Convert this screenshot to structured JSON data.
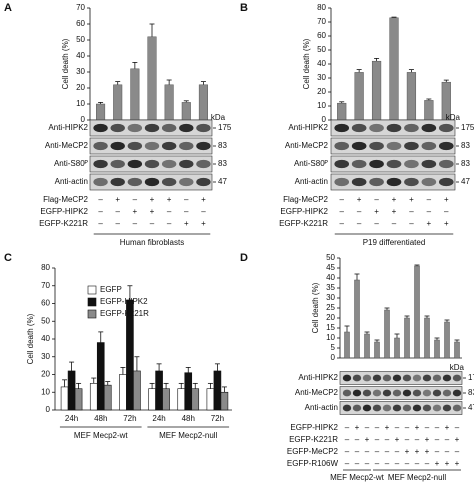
{
  "chart_data": [
    {
      "panel": "A",
      "type": "bar",
      "ylabel": "Cell death (%)",
      "color": "#8a8a8a",
      "values": [
        10,
        22,
        32,
        52,
        22,
        11,
        22
      ],
      "errors": [
        1,
        2,
        4,
        8,
        3,
        1,
        2
      ],
      "ylim": [
        0,
        70
      ],
      "yticks": [
        0,
        10,
        20,
        30,
        40,
        50,
        60,
        70
      ],
      "kda_unit": "kDa",
      "blots": [
        {
          "label": "Anti-HIPK2",
          "kda": 175
        },
        {
          "label": "Anti-MeCP2",
          "kda": 83
        },
        {
          "label": "Anti-S80ᴾ",
          "kda": 83
        },
        {
          "label": "Anti-actin",
          "kda": 47
        }
      ],
      "conditions": [
        {
          "label": "Flag-MeCP2",
          "signs": [
            "–",
            "+",
            "–",
            "+",
            "+",
            "–",
            "+"
          ]
        },
        {
          "label": "EGFP-HIPK2",
          "signs": [
            "–",
            "–",
            "+",
            "+",
            "–",
            "–",
            "–"
          ]
        },
        {
          "label": "EGFP-K221R",
          "signs": [
            "–",
            "–",
            "–",
            "–",
            "–",
            "+",
            "+"
          ]
        }
      ],
      "footer": [
        "Human fibroblasts"
      ]
    },
    {
      "panel": "B",
      "type": "bar",
      "ylabel": "Cell death (%)",
      "color": "#8a8a8a",
      "values": [
        12,
        34,
        42,
        73,
        34,
        14,
        27
      ],
      "errors": [
        1,
        2,
        2,
        0.5,
        2,
        1,
        1.5
      ],
      "ylim": [
        0,
        80
      ],
      "yticks": [
        0,
        10,
        20,
        30,
        40,
        50,
        60,
        70,
        80
      ],
      "kda_unit": "kDa",
      "blots": [
        {
          "label": "Anti-HIPK2",
          "kda": 175
        },
        {
          "label": "Anti-MeCP2",
          "kda": 83
        },
        {
          "label": "Anti-S80ᴾ",
          "kda": 83
        },
        {
          "label": "Anti-actin",
          "kda": 47
        }
      ],
      "conditions": [
        {
          "label": "Flag-MeCP2",
          "signs": [
            "–",
            "+",
            "–",
            "+",
            "+",
            "–",
            "+"
          ]
        },
        {
          "label": "EGFP-HIPK2",
          "signs": [
            "–",
            "–",
            "+",
            "+",
            "–",
            "–",
            "–"
          ]
        },
        {
          "label": "EGFP-K221R",
          "signs": [
            "–",
            "–",
            "–",
            "–",
            "–",
            "+",
            "+"
          ]
        }
      ],
      "footer": [
        "P19 differentiated"
      ]
    },
    {
      "panel": "C",
      "type": "bar",
      "ylabel": "Cell death (%)",
      "categories": [
        "24h",
        "48h",
        "72h",
        "24h",
        "48h",
        "72h"
      ],
      "series": [
        {
          "name": "EGFP",
          "color": "#ffffff",
          "values": [
            13,
            15,
            20,
            12,
            12,
            12
          ],
          "errors": [
            4,
            3,
            4,
            3,
            3,
            3
          ]
        },
        {
          "name": "EGFP-HIPK2",
          "color": "#111111",
          "values": [
            22,
            38,
            62,
            22,
            21,
            22
          ],
          "errors": [
            5,
            6,
            8,
            4,
            3,
            4
          ]
        },
        {
          "name": "EGFP-K221R",
          "color": "#8a8a8a",
          "values": [
            12,
            14,
            22,
            12,
            12,
            10
          ],
          "errors": [
            3,
            2,
            8,
            3,
            3,
            3
          ]
        }
      ],
      "ylim": [
        0,
        80
      ],
      "yticks": [
        0,
        10,
        20,
        30,
        40,
        50,
        60,
        70,
        80
      ],
      "footer": [
        "MEF Mecp2-wt",
        "MEF Mecp2-null"
      ]
    },
    {
      "panel": "D",
      "type": "bar",
      "ylabel": "Cell death (%)",
      "color": "#8a8a8a",
      "values": [
        13,
        39,
        12,
        8,
        24,
        10,
        20,
        46,
        20,
        9,
        18,
        8
      ],
      "errors": [
        3,
        3,
        1,
        1,
        1,
        2,
        1,
        0.5,
        1,
        1,
        1,
        1
      ],
      "ylim": [
        0,
        50
      ],
      "yticks": [
        0,
        5,
        10,
        15,
        20,
        25,
        30,
        35,
        40,
        45,
        50
      ],
      "kda_unit": "kDa",
      "blots": [
        {
          "label": "Anti-HIPK2",
          "kda": 175
        },
        {
          "label": "Anti-MeCP2",
          "kda": 83
        },
        {
          "label": "Anti-actin",
          "kda": 47
        }
      ],
      "conditions": [
        {
          "label": "EGFP-HIPK2",
          "signs": [
            "–",
            "+",
            "–",
            "–",
            "+",
            "–",
            "–",
            "+",
            "–",
            "–",
            "+",
            "–"
          ]
        },
        {
          "label": "EGFP-K221R",
          "signs": [
            "–",
            "–",
            "+",
            "–",
            "–",
            "+",
            "–",
            "–",
            "+",
            "–",
            "–",
            "+"
          ]
        },
        {
          "label": "EGFP-MeCP2",
          "signs": [
            "–",
            "–",
            "–",
            "–",
            "–",
            "–",
            "+",
            "+",
            "+",
            "–",
            "–",
            "–"
          ]
        },
        {
          "label": "EGFP-R106W",
          "signs": [
            "–",
            "–",
            "–",
            "–",
            "–",
            "–",
            "–",
            "–",
            "–",
            "+",
            "+",
            "+"
          ]
        }
      ],
      "footer": [
        "MEF Mecp2-wt",
        "MEF Mecp2-null"
      ]
    }
  ]
}
